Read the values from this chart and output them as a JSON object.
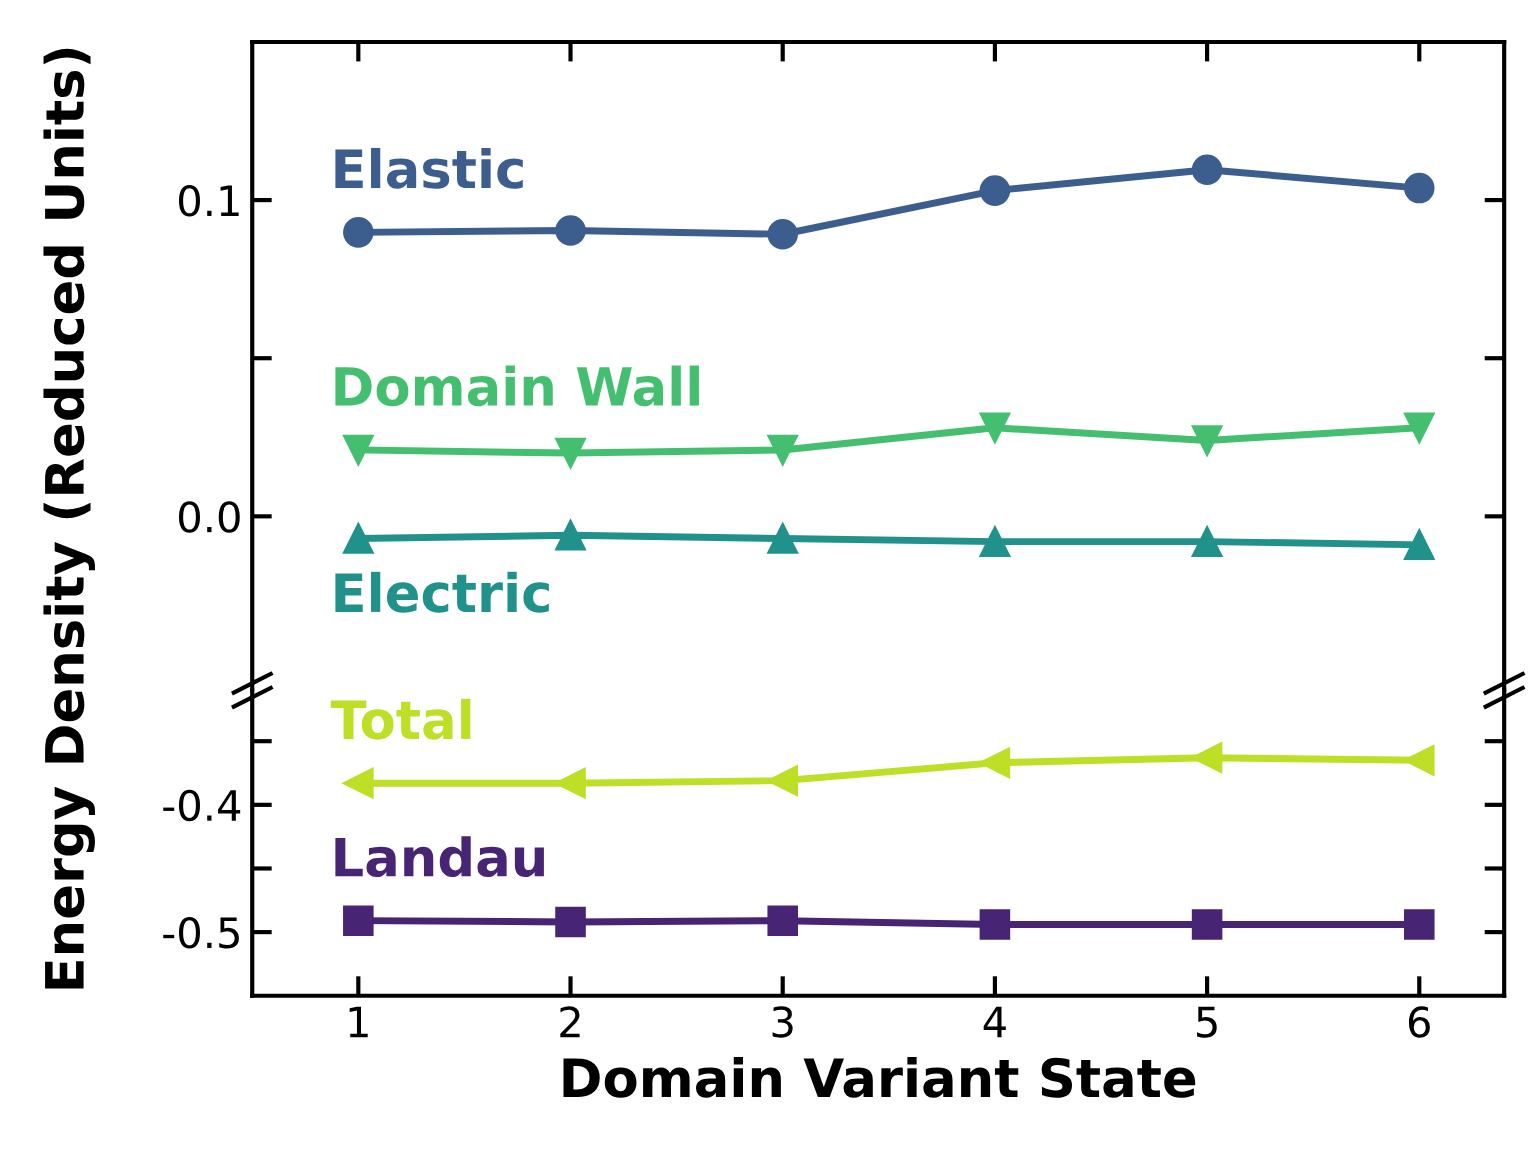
{
  "chart_data": [
    {
      "type": "line",
      "ylabel": "Energy Density (Reduced Units)",
      "x": [
        1,
        2,
        3,
        4,
        5,
        6
      ],
      "xlim": [
        0.5,
        6.4
      ],
      "xticks": [
        1,
        2,
        3,
        4,
        5,
        6
      ],
      "ylim": [
        -0.055,
        0.15
      ],
      "yticks": [
        {
          "value": 0,
          "label": "0.0"
        },
        {
          "value": 0.05,
          "label": null
        },
        0.1
      ],
      "tick_labels": "y",
      "grid": false,
      "legend": false,
      "series": [
        {
          "name": "Elastic",
          "color": "#3b5e8f",
          "marker": "circle",
          "values": [
            0.0898,
            0.0904,
            0.0892,
            0.103,
            0.1096,
            0.1038
          ]
        },
        {
          "name": "Domain Wall",
          "color": "#44bf70",
          "marker": "triangle-down",
          "values": [
            0.021,
            0.02,
            0.021,
            0.028,
            0.024,
            0.028
          ]
        },
        {
          "name": "Electric",
          "color": "#21918c",
          "marker": "triangle",
          "values": [
            -0.007,
            -0.006,
            -0.007,
            -0.008,
            -0.008,
            -0.009
          ]
        }
      ]
    },
    {
      "type": "line",
      "xlabel": "Domain Variant State",
      "x": [
        1,
        2,
        3,
        4,
        5,
        6
      ],
      "xlim": [
        0.5,
        6.4
      ],
      "xticks": [
        1,
        2,
        3,
        4,
        5,
        6
      ],
      "ylim": [
        -0.55,
        -0.31
      ],
      "yticks": [
        -0.5,
        {
          "value": -0.45,
          "label": null
        },
        -0.4,
        {
          "value": -0.35,
          "label": null
        }
      ],
      "grid": false,
      "legend": false,
      "series": [
        {
          "name": "Total",
          "color": "#bddf26",
          "marker": "triangle-left",
          "values": [
            -0.383,
            -0.383,
            -0.381,
            -0.367,
            -0.363,
            -0.365
          ]
        },
        {
          "name": "Landau",
          "color": "#482475",
          "marker": "square",
          "values": [
            -0.491,
            -0.492,
            -0.491,
            -0.494,
            -0.494,
            -0.494
          ]
        }
      ]
    }
  ]
}
